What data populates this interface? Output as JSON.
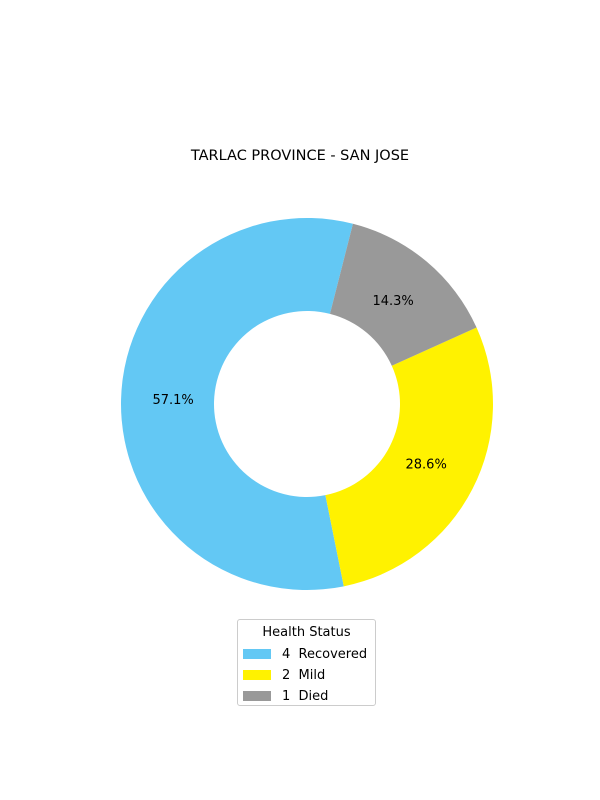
{
  "chart_data": {
    "type": "pie",
    "title": "TARLAC PROVINCE - SAN JOSE",
    "donut": true,
    "categories": [
      "Recovered",
      "Mild",
      "Died"
    ],
    "values": [
      4,
      2,
      1
    ],
    "percent_labels": [
      "57.1%",
      "28.6%",
      "14.3%"
    ],
    "colors": [
      "#63c8f4",
      "#fff200",
      "#999999"
    ],
    "legend": {
      "title": "Health Status",
      "placement": "bottom-center",
      "entries": [
        "4  Recovered",
        "2  Mild",
        "1  Died"
      ]
    }
  }
}
